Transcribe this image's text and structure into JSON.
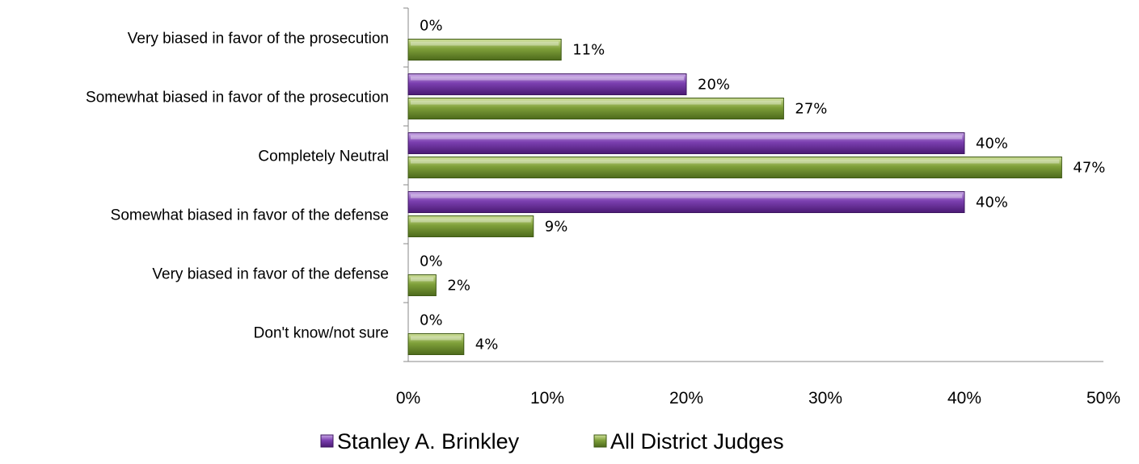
{
  "chart_data": {
    "type": "bar",
    "orientation": "horizontal",
    "categories": [
      "Very biased in favor of the prosecution",
      "Somewhat biased in favor of the prosecution",
      "Completely Neutral",
      "Somewhat biased in favor of the defense",
      "Very biased in favor of the defense",
      "Don't know/not sure"
    ],
    "series": [
      {
        "name": "Stanley A. Brinkley",
        "color": "#7030a0",
        "values": [
          0,
          20,
          40,
          40,
          0,
          0
        ],
        "labels": [
          "0%",
          "20%",
          "40%",
          "40%",
          "0%",
          "0%"
        ]
      },
      {
        "name": "All District Judges",
        "color": "#6f8f2e",
        "values": [
          11,
          27,
          47,
          9,
          2,
          4
        ],
        "labels": [
          "11%",
          "27%",
          "47%",
          "9%",
          "2%",
          "4%"
        ]
      }
    ],
    "xlim": [
      0,
      50
    ],
    "xticks": [
      "0%",
      "10%",
      "20%",
      "30%",
      "40%",
      "50%"
    ],
    "grid": false,
    "legend_position": "bottom"
  }
}
